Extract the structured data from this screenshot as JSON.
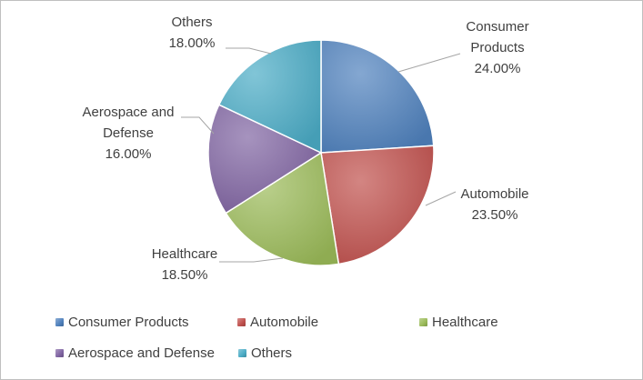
{
  "chart_data": {
    "type": "pie",
    "title": "",
    "categories": [
      "Consumer Products",
      "Automobile",
      "Healthcare",
      "Aerospace and Defense",
      "Others"
    ],
    "values": [
      24.0,
      23.5,
      18.5,
      16.0,
      18.0
    ],
    "data_labels": [
      [
        "Consumer",
        "Products",
        "24.00%"
      ],
      [
        "Automobile",
        "23.50%"
      ],
      [
        "Healthcare",
        "18.50%"
      ],
      [
        "Aerospace and",
        "Defense",
        "16.00%"
      ],
      [
        "Others",
        "18.00%"
      ]
    ],
    "colors": [
      "#4f81bd",
      "#c0504d",
      "#9bbb59",
      "#8064a2",
      "#4bacc6"
    ],
    "start_angle": "12 o'clock",
    "direction": "clockwise",
    "legend_position": "bottom",
    "grid": false
  }
}
